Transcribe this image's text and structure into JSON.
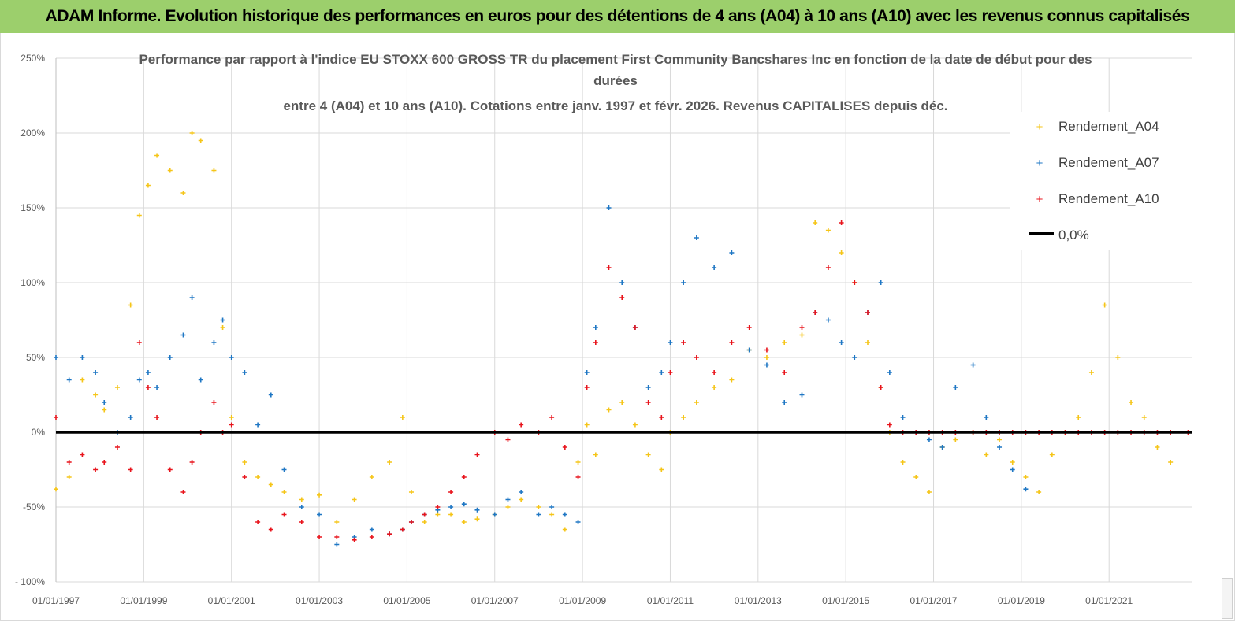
{
  "banner": {
    "title": "ADAM Informe. Evolution historique des performances en euros pour des détentions de 4 ans (A04) à 10 ans (A10) avec les revenus connus capitalisés"
  },
  "chart_data": {
    "type": "scatter",
    "title_lines": [
      "Performance par rapport à l'indice EU STOXX 600 GROSS TR  du placement First Community Bancshares Inc en fonction de la date de début pour des",
      "durées",
      "entre 4 (A04) et 10 ans (A10). Cotations entre janv. 1997 et févr. 2026. Revenus CAPITALISES depuis déc."
    ],
    "xlabel": "",
    "ylabel": "",
    "xlim": [
      1997.0,
      2022.9
    ],
    "ylim": [
      -100,
      250
    ],
    "y_ticks": [
      {
        "value": 250,
        "label": "250%"
      },
      {
        "value": 200,
        "label": "200%"
      },
      {
        "value": 150,
        "label": "150%"
      },
      {
        "value": 100,
        "label": "100%"
      },
      {
        "value": 50,
        "label": "50%"
      },
      {
        "value": 0,
        "label": "0%"
      },
      {
        "value": -50,
        "label": "-50%"
      },
      {
        "value": -100,
        "label": "- 100%"
      }
    ],
    "x_ticks": [
      {
        "value": 1997,
        "label": "01/01/1997"
      },
      {
        "value": 1999,
        "label": "01/01/1999"
      },
      {
        "value": 2001,
        "label": "01/01/2001"
      },
      {
        "value": 2003,
        "label": "01/01/2003"
      },
      {
        "value": 2005,
        "label": "01/01/2005"
      },
      {
        "value": 2007,
        "label": "01/01/2007"
      },
      {
        "value": 2009,
        "label": "01/01/2009"
      },
      {
        "value": 2011,
        "label": "01/01/2011"
      },
      {
        "value": 2013,
        "label": "01/01/2013"
      },
      {
        "value": 2015,
        "label": "01/01/2015"
      },
      {
        "value": 2017,
        "label": "01/01/2017"
      },
      {
        "value": 2019,
        "label": "01/01/2019"
      },
      {
        "value": 2021,
        "label": "01/01/2021"
      }
    ],
    "grid": true,
    "legend_position": "top-right",
    "legend_zero_label": "0,0%",
    "reference_line": {
      "name": "0,0%",
      "value": 0,
      "color": "#000000"
    },
    "series": [
      {
        "name": "Rendement_A04",
        "color": "#f5c518",
        "x": [
          1997.0,
          1997.3,
          1997.6,
          1997.9,
          1998.1,
          1998.4,
          1998.7,
          1998.9,
          1999.1,
          1999.3,
          1999.6,
          1999.9,
          2000.1,
          2000.3,
          2000.6,
          2000.8,
          2001.0,
          2001.3,
          2001.6,
          2001.9,
          2002.2,
          2002.6,
          2003.0,
          2003.4,
          2003.8,
          2004.2,
          2004.6,
          2004.9,
          2005.1,
          2005.4,
          2005.7,
          2006.0,
          2006.3,
          2006.6,
          2007.0,
          2007.3,
          2007.6,
          2008.0,
          2008.3,
          2008.6,
          2008.9,
          2009.1,
          2009.3,
          2009.6,
          2009.9,
          2010.2,
          2010.5,
          2010.8,
          2011.0,
          2011.3,
          2011.6,
          2012.0,
          2012.4,
          2012.8,
          2013.2,
          2013.6,
          2014.0,
          2014.3,
          2014.6,
          2014.9,
          2015.2,
          2015.5,
          2015.8,
          2016.0,
          2016.3,
          2016.6,
          2016.9,
          2017.2,
          2017.5,
          2017.9,
          2018.2,
          2018.5,
          2018.8,
          2019.1,
          2019.4,
          2019.7,
          2020.0,
          2020.3,
          2020.6,
          2020.9,
          2021.2,
          2021.5,
          2021.8,
          2022.1,
          2022.4
        ],
        "y": [
          -38,
          -30,
          35,
          25,
          15,
          30,
          85,
          145,
          165,
          185,
          175,
          160,
          200,
          195,
          175,
          70,
          10,
          -20,
          -30,
          -35,
          -40,
          -45,
          -42,
          -60,
          -45,
          -30,
          -20,
          10,
          -40,
          -60,
          -55,
          -55,
          -60,
          -58,
          -55,
          -50,
          -45,
          -50,
          -55,
          -65,
          -20,
          5,
          -15,
          15,
          20,
          5,
          -15,
          -25,
          0,
          10,
          20,
          30,
          35,
          55,
          50,
          60,
          65,
          140,
          135,
          120,
          100,
          60,
          30,
          0,
          -20,
          -30,
          -40,
          -10,
          -5,
          0,
          -15,
          -5,
          -20,
          -30,
          -40,
          -15,
          0,
          10,
          40,
          85,
          50,
          20,
          10,
          -10,
          -20
        ]
      },
      {
        "name": "Rendement_A07",
        "color": "#1f77c4",
        "x": [
          1997.0,
          1997.3,
          1997.6,
          1997.9,
          1998.1,
          1998.4,
          1998.7,
          1998.9,
          1999.1,
          1999.3,
          1999.6,
          1999.9,
          2000.1,
          2000.3,
          2000.6,
          2000.8,
          2001.0,
          2001.3,
          2001.6,
          2001.9,
          2002.2,
          2002.6,
          2003.0,
          2003.4,
          2003.8,
          2004.2,
          2004.6,
          2004.9,
          2005.1,
          2005.4,
          2005.7,
          2006.0,
          2006.3,
          2006.6,
          2007.0,
          2007.3,
          2007.6,
          2008.0,
          2008.3,
          2008.6,
          2008.9,
          2009.1,
          2009.3,
          2009.6,
          2009.9,
          2010.2,
          2010.5,
          2010.8,
          2011.0,
          2011.3,
          2011.6,
          2012.0,
          2012.4,
          2012.8,
          2013.2,
          2013.6,
          2014.0,
          2014.3,
          2014.6,
          2014.9,
          2015.2,
          2015.5,
          2015.8,
          2016.0,
          2016.3,
          2016.6,
          2016.9,
          2017.2,
          2017.5,
          2017.9,
          2018.2,
          2018.5,
          2018.8,
          2019.1
        ],
        "y": [
          50,
          35,
          50,
          40,
          20,
          0,
          10,
          35,
          40,
          30,
          50,
          65,
          90,
          35,
          60,
          75,
          50,
          40,
          5,
          25,
          -25,
          -50,
          -55,
          -75,
          -70,
          -65,
          -68,
          -65,
          -60,
          -55,
          -52,
          -50,
          -48,
          -52,
          -55,
          -45,
          -40,
          -55,
          -50,
          -55,
          -60,
          40,
          70,
          150,
          100,
          70,
          30,
          40,
          60,
          100,
          130,
          110,
          120,
          55,
          45,
          20,
          25,
          80,
          75,
          60,
          50,
          80,
          100,
          40,
          10,
          0,
          -5,
          -10,
          30,
          45,
          10,
          -10,
          -25,
          -38
        ]
      },
      {
        "name": "Rendement_A10",
        "color": "#e8141c",
        "x": [
          1997.0,
          1997.3,
          1997.6,
          1997.9,
          1998.1,
          1998.4,
          1998.7,
          1998.9,
          1999.1,
          1999.3,
          1999.6,
          1999.9,
          2000.1,
          2000.3,
          2000.6,
          2000.8,
          2001.0,
          2001.3,
          2001.6,
          2001.9,
          2002.2,
          2002.6,
          2003.0,
          2003.4,
          2003.8,
          2004.2,
          2004.6,
          2004.9,
          2005.1,
          2005.4,
          2005.7,
          2006.0,
          2006.3,
          2006.6,
          2007.0,
          2007.3,
          2007.6,
          2008.0,
          2008.3,
          2008.6,
          2008.9,
          2009.1,
          2009.3,
          2009.6,
          2009.9,
          2010.2,
          2010.5,
          2010.8,
          2011.0,
          2011.3,
          2011.6,
          2012.0,
          2012.4,
          2012.8,
          2013.2,
          2013.6,
          2014.0,
          2014.3,
          2014.6,
          2014.9,
          2015.2,
          2015.5,
          2015.8,
          2016.0,
          2016.3,
          2016.6,
          2016.9,
          2017.2,
          2017.5,
          2017.9,
          2018.2,
          2018.5,
          2018.8,
          2019.1,
          2019.4,
          2019.7,
          2020.0,
          2020.3,
          2020.6,
          2020.9,
          2021.2,
          2021.5,
          2021.8,
          2022.1,
          2022.4,
          2022.8
        ],
        "y": [
          10,
          -20,
          -15,
          -25,
          -20,
          -10,
          -25,
          60,
          30,
          10,
          -25,
          -40,
          -20,
          0,
          20,
          0,
          5,
          -30,
          -60,
          -65,
          -55,
          -60,
          -70,
          -70,
          -72,
          -70,
          -68,
          -65,
          -60,
          -55,
          -50,
          -40,
          -30,
          -15,
          0,
          -5,
          5,
          0,
          10,
          -10,
          -30,
          30,
          60,
          110,
          90,
          70,
          20,
          10,
          40,
          60,
          50,
          40,
          60,
          70,
          55,
          40,
          70,
          80,
          110,
          140,
          100,
          80,
          30,
          5,
          0,
          0,
          0,
          0,
          0,
          0,
          0,
          0,
          0,
          0,
          0,
          0,
          0,
          0,
          0,
          0,
          0,
          0,
          0,
          0,
          0,
          0
        ]
      }
    ]
  }
}
